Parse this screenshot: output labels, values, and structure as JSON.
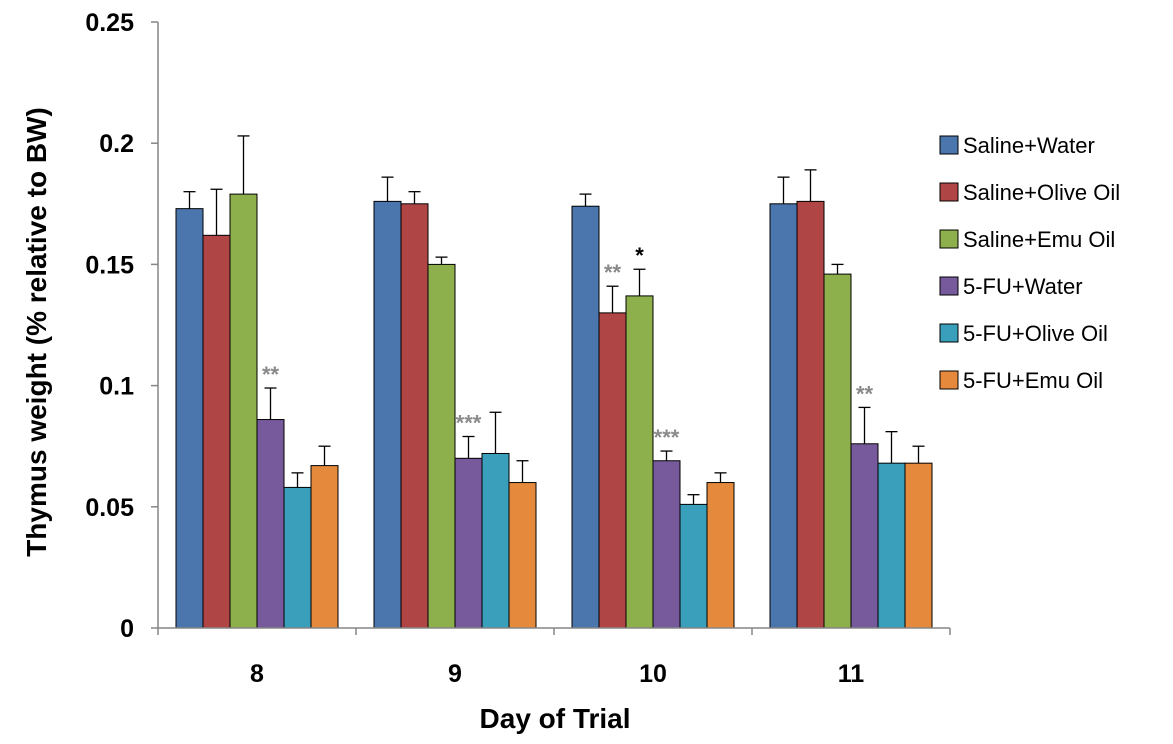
{
  "chart_data": {
    "type": "bar",
    "title": "",
    "xlabel": "Day of Trial",
    "ylabel": "Thymus weight (% relative to BW)",
    "ylim": [
      0,
      0.25
    ],
    "yticks": [
      "0",
      "0.05",
      "0.1",
      "0.15",
      "0.2",
      "0.25"
    ],
    "categories": [
      "8",
      "9",
      "10",
      "11"
    ],
    "grid": false,
    "legend_position": "right",
    "series": [
      {
        "name": "Saline+Water",
        "color": "#4a76ad",
        "values": [
          0.173,
          0.176,
          0.174,
          0.175
        ],
        "errors": [
          0.007,
          0.01,
          0.005,
          0.011
        ],
        "sig": [
          "",
          "",
          "",
          ""
        ]
      },
      {
        "name": "Saline+Olive Oil",
        "color": "#b04545",
        "values": [
          0.162,
          0.175,
          0.13,
          0.176
        ],
        "errors": [
          0.019,
          0.005,
          0.011,
          0.013
        ],
        "sig": [
          "",
          "",
          "**",
          ""
        ]
      },
      {
        "name": "Saline+Emu Oil",
        "color": "#8eb04c",
        "values": [
          0.179,
          0.15,
          0.137,
          0.146
        ],
        "errors": [
          0.024,
          0.003,
          0.011,
          0.004
        ],
        "sig": [
          "",
          "",
          "*",
          ""
        ]
      },
      {
        "name": "5-FU+Water",
        "color": "#775a9c",
        "values": [
          0.086,
          0.07,
          0.069,
          0.076
        ],
        "errors": [
          0.013,
          0.009,
          0.004,
          0.015
        ],
        "sig": [
          "**",
          "***",
          "***",
          "**"
        ]
      },
      {
        "name": "5-FU+Olive Oil",
        "color": "#3a9fba",
        "values": [
          0.058,
          0.072,
          0.051,
          0.068
        ],
        "errors": [
          0.006,
          0.017,
          0.004,
          0.013
        ],
        "sig": [
          "",
          "",
          "",
          ""
        ]
      },
      {
        "name": "5-FU+Emu Oil",
        "color": "#e58a3c",
        "values": [
          0.067,
          0.06,
          0.06,
          0.068
        ],
        "errors": [
          0.008,
          0.009,
          0.004,
          0.007
        ],
        "sig": [
          "",
          "",
          "",
          ""
        ]
      }
    ]
  }
}
